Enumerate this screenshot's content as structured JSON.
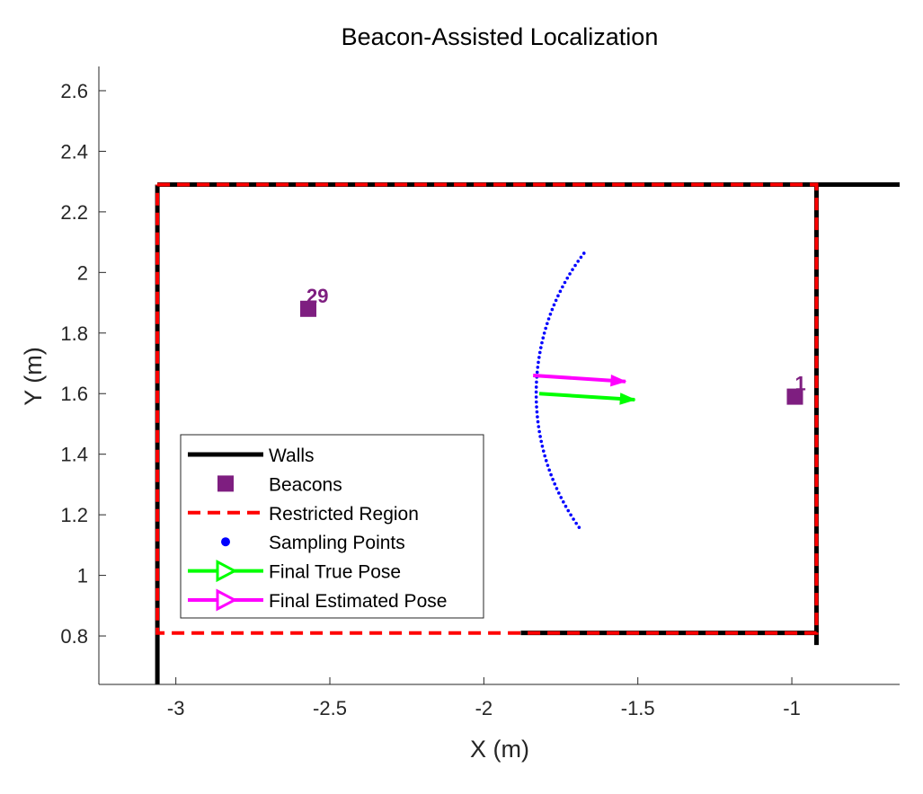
{
  "chart_data": {
    "type": "line",
    "title": "Beacon-Assisted Localization",
    "xlabel": "X (m)",
    "ylabel": "Y (m)",
    "xlim": [
      -3.25,
      -0.65
    ],
    "ylim": [
      0.64,
      2.68
    ],
    "xticks": [
      -3,
      -2.5,
      -2,
      -1.5,
      -1
    ],
    "xtick_labels": [
      "-3",
      "-2.5",
      "-2",
      "-1.5",
      "-1"
    ],
    "yticks": [
      0.8,
      1,
      1.2,
      1.4,
      1.6,
      1.8,
      2,
      2.2,
      2.4,
      2.6
    ],
    "ytick_labels": [
      "0.8",
      "1",
      "1.2",
      "1.4",
      "1.6",
      "1.8",
      "2",
      "2.2",
      "2.4",
      "2.6"
    ],
    "grid": false,
    "walls": [
      {
        "x": [
          -3.06,
          -3.06
        ],
        "y": [
          0.64,
          2.29
        ]
      },
      {
        "x": [
          -3.06,
          -0.65
        ],
        "y": [
          2.29,
          2.29
        ]
      },
      {
        "x": [
          -0.92,
          -0.92
        ],
        "y": [
          2.29,
          0.77
        ]
      },
      {
        "x": [
          -0.92,
          -1.88
        ],
        "y": [
          0.81,
          0.81
        ]
      }
    ],
    "restricted_region": {
      "x": [
        -3.06,
        -0.92,
        -0.92,
        -3.06,
        -3.06
      ],
      "y": [
        2.29,
        2.29,
        0.81,
        0.81,
        2.29
      ]
    },
    "beacons": [
      {
        "id": "29",
        "x": -2.57,
        "y": 1.88
      },
      {
        "id": "1",
        "x": -0.99,
        "y": 1.59
      }
    ],
    "sampling_arc": {
      "center_x": -1.06,
      "center_y": 1.6,
      "radius": 0.77,
      "start_deg": 143,
      "end_deg": 215,
      "count": 60
    },
    "final_true_pose": {
      "x": -1.82,
      "y": 1.6,
      "dx": 0.31,
      "dy": -0.02
    },
    "final_estimated_pose": {
      "x": -1.84,
      "y": 1.66,
      "dx": 0.3,
      "dy": -0.02
    },
    "legend_position": "bottom-left",
    "legend": [
      {
        "label": "Walls",
        "kind": "wall"
      },
      {
        "label": "Beacons",
        "kind": "beacon"
      },
      {
        "label": "Restricted Region",
        "kind": "restricted"
      },
      {
        "label": "Sampling Points",
        "kind": "sampling"
      },
      {
        "label": "Final True Pose",
        "kind": "true-pose"
      },
      {
        "label": "Final Estimated Pose",
        "kind": "est-pose"
      }
    ],
    "colors": {
      "walls": "#000000",
      "restricted": "#ff0000",
      "beacon": "#7e1e80",
      "sampling": "#0000ff",
      "true_pose": "#00ff00",
      "estimated_pose": "#ff00ff",
      "axis": "#262626"
    }
  }
}
